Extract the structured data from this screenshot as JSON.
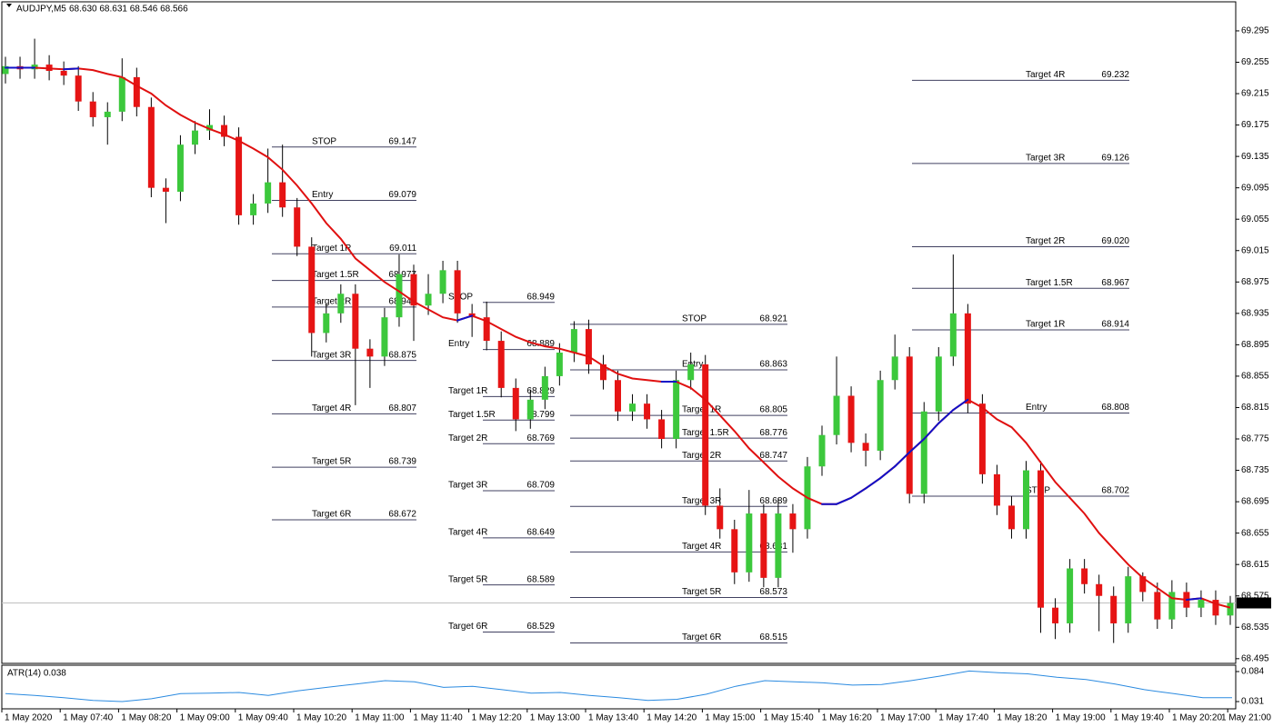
{
  "chart_data": {
    "type": "candlestick",
    "title": "AUDJPY,M5",
    "quote": "68.630 68.631 68.546 68.566",
    "up_color": "#3cc83c",
    "down_color": "#e61414",
    "wick_color": "#000000",
    "ylim": [
      68.489,
      69.332
    ],
    "yticks": [
      69.295,
      69.255,
      69.215,
      69.175,
      69.135,
      69.095,
      69.055,
      69.015,
      68.975,
      68.935,
      68.895,
      68.855,
      68.815,
      68.775,
      68.735,
      68.695,
      68.655,
      68.615,
      68.575,
      68.535,
      68.495
    ],
    "xtick_labels": [
      "1 May 2020",
      "1 May 07:40",
      "1 May 08:20",
      "1 May 09:00",
      "1 May 09:40",
      "1 May 10:20",
      "1 May 11:00",
      "1 May 11:40",
      "1 May 12:20",
      "1 May 13:00",
      "1 May 13:40",
      "1 May 14:20",
      "1 May 15:00",
      "1 May 15:40",
      "1 May 16:20",
      "1 May 17:00",
      "1 May 17:40",
      "1 May 18:20",
      "1 May 19:00",
      "1 May 19:40",
      "1 May 20:20",
      "1 May 21:00"
    ],
    "open": [
      69.24,
      69.25,
      69.246,
      69.252,
      69.244,
      69.238,
      69.205,
      69.185,
      69.192,
      69.236,
      69.198,
      69.095,
      69.09,
      69.15,
      69.168,
      69.175,
      69.16,
      69.06,
      69.075,
      69.102,
      69.07,
      69.02,
      68.91,
      68.935,
      68.96,
      68.89,
      68.88,
      68.93,
      68.985,
      68.945,
      68.96,
      68.99,
      68.935,
      68.93,
      68.9,
      68.84,
      68.8,
      68.825,
      68.855,
      68.885,
      68.915,
      68.87,
      68.85,
      68.81,
      68.82,
      68.8,
      68.775,
      68.85,
      68.87,
      68.69,
      68.66,
      68.605,
      68.68,
      68.598,
      68.68,
      68.66,
      68.74,
      68.78,
      68.83,
      68.77,
      68.76,
      68.85,
      68.88,
      68.705,
      68.81,
      68.88,
      68.935,
      68.82,
      68.73,
      68.69,
      68.66,
      68.735,
      68.56,
      68.54,
      68.61,
      68.59,
      68.575,
      68.54,
      68.6,
      68.58,
      68.545,
      68.58,
      68.56,
      68.57,
      68.55
    ],
    "high": [
      69.262,
      69.262,
      69.285,
      69.264,
      69.256,
      69.25,
      69.217,
      69.204,
      69.26,
      69.248,
      69.21,
      69.107,
      69.162,
      69.18,
      69.195,
      69.187,
      69.172,
      69.087,
      69.145,
      69.15,
      69.082,
      69.032,
      68.947,
      68.972,
      68.972,
      68.902,
      68.942,
      69.01,
      68.997,
      68.985,
      69.002,
      69.002,
      68.947,
      68.95,
      68.912,
      68.852,
      68.837,
      68.867,
      68.897,
      68.925,
      68.927,
      68.882,
      68.862,
      68.832,
      68.832,
      68.812,
      68.862,
      68.885,
      68.882,
      68.712,
      68.672,
      68.71,
      68.692,
      68.7,
      68.692,
      68.752,
      68.792,
      68.88,
      68.842,
      68.782,
      68.862,
      68.908,
      68.892,
      68.822,
      68.892,
      69.01,
      68.947,
      68.832,
      68.742,
      68.702,
      68.747,
      68.747,
      68.572,
      68.622,
      68.622,
      68.602,
      68.587,
      68.612,
      68.605,
      68.592,
      68.595,
      68.592,
      68.582,
      68.582,
      68.575
    ],
    "low": [
      69.228,
      69.234,
      69.234,
      69.232,
      69.226,
      69.193,
      69.173,
      69.15,
      69.18,
      69.186,
      69.083,
      69.05,
      69.078,
      69.138,
      69.156,
      69.148,
      69.048,
      69.048,
      69.063,
      69.058,
      69.008,
      68.88,
      68.898,
      68.923,
      68.818,
      68.84,
      68.868,
      68.918,
      68.9,
      68.933,
      68.948,
      68.923,
      68.905,
      68.888,
      68.828,
      68.785,
      68.788,
      68.813,
      68.843,
      68.873,
      68.858,
      68.838,
      68.798,
      68.798,
      68.788,
      68.763,
      68.763,
      68.838,
      68.678,
      68.648,
      68.59,
      68.593,
      68.586,
      68.586,
      68.63,
      68.648,
      68.728,
      68.768,
      68.758,
      68.74,
      68.748,
      68.838,
      68.693,
      68.693,
      68.798,
      68.868,
      68.808,
      68.718,
      68.678,
      68.648,
      68.648,
      68.528,
      68.52,
      68.528,
      68.578,
      68.53,
      68.515,
      68.528,
      68.568,
      68.533,
      68.533,
      68.548,
      68.548,
      68.538,
      68.538
    ],
    "close": [
      69.25,
      69.246,
      69.252,
      69.244,
      69.238,
      69.205,
      69.185,
      69.192,
      69.236,
      69.198,
      69.095,
      69.09,
      69.15,
      69.168,
      69.175,
      69.16,
      69.06,
      69.075,
      69.102,
      69.07,
      69.02,
      68.91,
      68.935,
      68.96,
      68.89,
      68.88,
      68.93,
      68.985,
      68.945,
      68.96,
      68.99,
      68.935,
      68.93,
      68.9,
      68.84,
      68.8,
      68.825,
      68.855,
      68.885,
      68.915,
      68.87,
      68.85,
      68.81,
      68.82,
      68.8,
      68.775,
      68.85,
      68.87,
      68.69,
      68.66,
      68.605,
      68.68,
      68.598,
      68.68,
      68.66,
      68.74,
      68.78,
      68.83,
      68.77,
      68.76,
      68.85,
      68.88,
      68.705,
      68.81,
      68.88,
      68.935,
      68.82,
      68.73,
      68.69,
      68.66,
      68.735,
      68.56,
      68.54,
      68.61,
      68.59,
      68.575,
      68.54,
      68.6,
      68.58,
      68.545,
      68.58,
      68.56,
      68.57,
      68.55,
      68.566
    ],
    "ma": {
      "color": "#e01010",
      "up_color": "#1010c8",
      "values": [
        69.248,
        69.248,
        69.248,
        69.247,
        69.246,
        69.247,
        69.245,
        69.24,
        69.236,
        69.225,
        69.215,
        69.2,
        69.188,
        69.178,
        69.17,
        69.163,
        69.155,
        69.145,
        69.134,
        69.118,
        69.098,
        69.075,
        69.05,
        69.03,
        69.005,
        68.99,
        68.975,
        68.963,
        68.95,
        68.94,
        68.93,
        68.926,
        68.932,
        68.925,
        68.915,
        68.905,
        68.898,
        68.893,
        68.89,
        68.885,
        68.88,
        68.868,
        68.858,
        68.852,
        68.85,
        68.848,
        68.848,
        68.84,
        68.825,
        68.805,
        68.785,
        68.763,
        68.745,
        68.727,
        68.712,
        68.7,
        68.692,
        68.692,
        68.7,
        68.712,
        68.725,
        68.74,
        68.758,
        68.775,
        68.795,
        68.812,
        68.825,
        68.815,
        68.8,
        68.79,
        68.77,
        68.745,
        68.72,
        68.7,
        68.68,
        68.655,
        68.635,
        68.615,
        68.598,
        68.585,
        68.572,
        68.57,
        68.572,
        68.565,
        68.56
      ]
    },
    "last_price": 68.566,
    "level_color": "#404060",
    "trade_setups": [
      {
        "levels": [
          {
            "name": "STOP",
            "value": 69.147
          },
          {
            "name": "Entry",
            "value": 69.079
          },
          {
            "name": "Target 1R",
            "value": 69.011
          },
          {
            "name": "Target 1.5R",
            "value": 68.977
          },
          {
            "name": "Target 2R",
            "value": 68.943
          },
          {
            "name": "Target 3R",
            "value": 68.875
          },
          {
            "name": "Target 4R",
            "value": 68.807
          },
          {
            "name": "Target 5R",
            "value": 68.739
          },
          {
            "name": "Target 6R",
            "value": 68.672
          }
        ]
      },
      {
        "levels": [
          {
            "name": "STOP",
            "value": 68.949
          },
          {
            "name": "Entry",
            "value": 68.889
          },
          {
            "name": "Target 1R",
            "value": 68.829
          },
          {
            "name": "Target 1.5R",
            "value": 68.799
          },
          {
            "name": "Target 2R",
            "value": 68.769
          },
          {
            "name": "Target 3R",
            "value": 68.709
          },
          {
            "name": "Target 4R",
            "value": 68.649
          },
          {
            "name": "Target 5R",
            "value": 68.589
          },
          {
            "name": "Target 6R",
            "value": 68.529
          }
        ]
      },
      {
        "levels": [
          {
            "name": "STOP",
            "value": 68.921
          },
          {
            "name": "Entry",
            "value": 68.863
          },
          {
            "name": "Target 1R",
            "value": 68.805
          },
          {
            "name": "Target 1.5R",
            "value": 68.776
          },
          {
            "name": "Target 2R",
            "value": 68.747
          },
          {
            "name": "Target 3R",
            "value": 68.689
          },
          {
            "name": "Target 4R",
            "value": 68.631
          },
          {
            "name": "Target 5R",
            "value": 68.573
          },
          {
            "name": "Target 6R",
            "value": 68.515
          }
        ]
      },
      {
        "levels": [
          {
            "name": "Target 4R",
            "value": 69.232
          },
          {
            "name": "Target 3R",
            "value": 69.126
          },
          {
            "name": "Target 2R",
            "value": 69.02,
            "value_label": "69.020"
          },
          {
            "name": "Target 1.5R",
            "value": 68.967
          },
          {
            "name": "Target 1R",
            "value": 68.914
          },
          {
            "name": "Entry",
            "value": 68.808
          },
          {
            "name": "STOP",
            "value": 68.702
          }
        ]
      }
    ],
    "indicator": {
      "label": "ATR(14) 0.038",
      "color": "#2a8ae0",
      "ylim": [
        0.0198,
        0.0936
      ],
      "yticks": [
        0.084,
        0.031
      ],
      "values": [
        0.045,
        0.042,
        0.038,
        0.033,
        0.031,
        0.036,
        0.045,
        0.046,
        0.047,
        0.042,
        0.05,
        0.056,
        0.062,
        0.068,
        0.066,
        0.056,
        0.058,
        0.052,
        0.046,
        0.047,
        0.042,
        0.038,
        0.033,
        0.035,
        0.044,
        0.058,
        0.068,
        0.066,
        0.064,
        0.06,
        0.061,
        0.068,
        0.076,
        0.085,
        0.082,
        0.08,
        0.074,
        0.07,
        0.062,
        0.052,
        0.045,
        0.038,
        0.038
      ]
    }
  }
}
